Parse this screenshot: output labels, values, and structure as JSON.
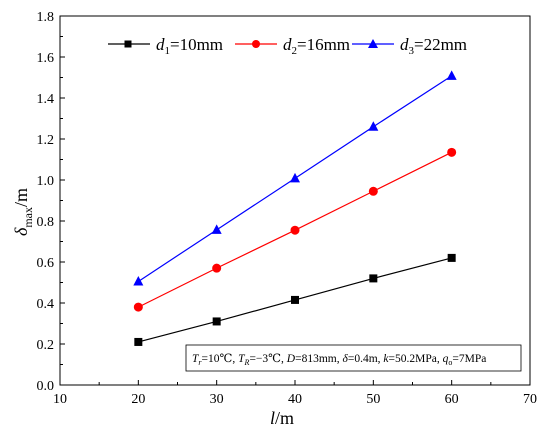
{
  "chart_data": {
    "type": "line",
    "x": [
      20,
      30,
      40,
      50,
      60
    ],
    "series": [
      {
        "name_var": "d",
        "name_sub": "1",
        "name_value": "=10mm",
        "color": "#000000",
        "marker": "square",
        "values": [
          0.21,
          0.31,
          0.415,
          0.52,
          0.62
        ]
      },
      {
        "name_var": "d",
        "name_sub": "2",
        "name_value": "=16mm",
        "color": "#ff0000",
        "marker": "circle",
        "values": [
          0.38,
          0.57,
          0.755,
          0.945,
          1.135
        ]
      },
      {
        "name_var": "d",
        "name_sub": "3",
        "name_value": "=22mm",
        "color": "#0000ff",
        "marker": "triangle",
        "values": [
          0.505,
          0.757,
          1.008,
          1.26,
          1.508
        ]
      }
    ],
    "xlim": [
      10,
      70
    ],
    "ylim": [
      0.0,
      1.8
    ],
    "xticks": [
      "10",
      "20",
      "30",
      "40",
      "50",
      "60",
      "70"
    ],
    "yticks": [
      "0.0",
      "0.2",
      "0.4",
      "0.6",
      "0.8",
      "1.0",
      "1.2",
      "1.4",
      "1.6",
      "1.8"
    ],
    "xlabel": {
      "var": "l",
      "unit": "/m"
    },
    "ylabel": {
      "var": "δ",
      "sub": "max",
      "unit": "/m"
    },
    "legend_position": "top",
    "grid": false,
    "annotation": "Tr=10℃, TR=−3℃, D=813mm, δ=0.4m, k=50.2MPa, qo=7MPa"
  }
}
